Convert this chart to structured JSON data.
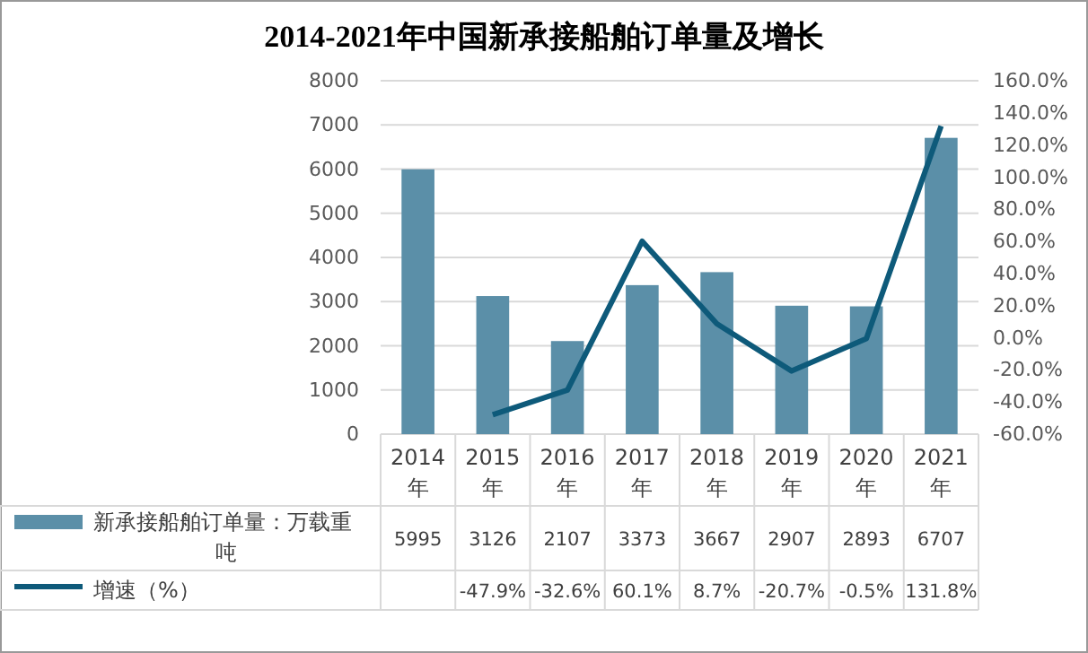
{
  "chart_data": {
    "type": "bar",
    "title": "2014-2021年中国新承接船舶订单量及增长",
    "categories": [
      "2014年",
      "2015年",
      "2016年",
      "2017年",
      "2018年",
      "2019年",
      "2020年",
      "2021年"
    ],
    "series": [
      {
        "name": "新承接船舶订单量：万载重吨",
        "color": "#5b8fa8",
        "values": [
          5995,
          3126,
          2107,
          3373,
          3667,
          2907,
          2893,
          6707
        ],
        "value_labels": [
          "5995",
          "3126",
          "2107",
          "3373",
          "3667",
          "2907",
          "2893",
          "6707"
        ]
      },
      {
        "name": "增速（%）",
        "type": "line",
        "axis": "y2",
        "color": "#0e5a7a",
        "values": [
          null,
          -47.9,
          -32.6,
          60.1,
          8.7,
          -20.7,
          -0.5,
          131.8
        ],
        "value_labels": [
          null,
          "-47.9%",
          "-32.6%",
          "60.1%",
          "8.7%",
          "-20.7%",
          "-0.5%",
          "131.8%"
        ]
      }
    ],
    "ylim": [
      0,
      8000
    ],
    "yticks": [
      0,
      1000,
      2000,
      3000,
      4000,
      5000,
      6000,
      7000,
      8000
    ],
    "y2lim": [
      -60,
      160
    ],
    "y2ticks": [
      {
        "value": -60,
        "label": "-60.0%"
      },
      {
        "value": -40,
        "label": "-40.0%"
      },
      {
        "value": -20,
        "label": "-20.0%"
      },
      {
        "value": 0,
        "label": "0.0%"
      },
      {
        "value": 20,
        "label": "20.0%"
      },
      {
        "value": 40,
        "label": "40.0%"
      },
      {
        "value": 60,
        "label": "60.0%"
      },
      {
        "value": 80,
        "label": "80.0%"
      },
      {
        "value": 100,
        "label": "100.0%"
      },
      {
        "value": 120,
        "label": "120.0%"
      },
      {
        "value": 140,
        "label": "140.0%"
      },
      {
        "value": 160,
        "label": "160.0%"
      }
    ],
    "grid": "y",
    "legend": "bottom left",
    "marker": "none",
    "line_style": "solid"
  }
}
